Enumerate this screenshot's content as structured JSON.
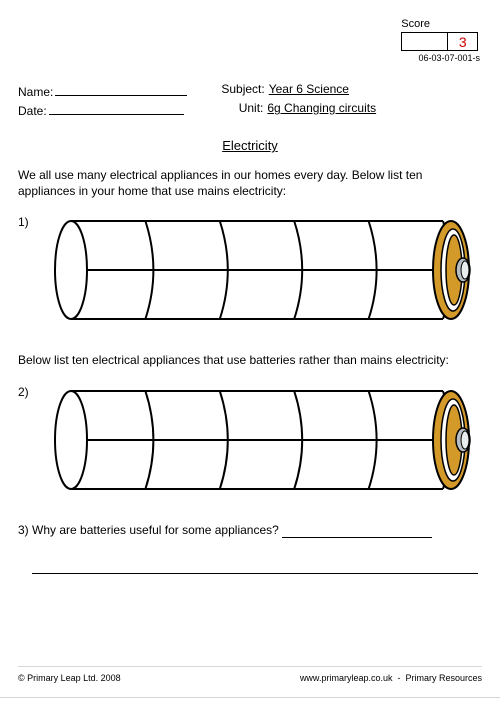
{
  "score": {
    "label": "Score",
    "value": "3",
    "doc_id": "06-03-07-001-s"
  },
  "meta": {
    "name_label": "Name:",
    "date_label": "Date:",
    "subject_label": "Subject:",
    "subject_value": "Year 6 Science",
    "unit_label": "Unit:",
    "unit_value": "6g Changing circuits"
  },
  "title": "Electricity",
  "q1_text": "We all use many electrical appliances in our homes every day. Below list ten appliances in your home that use mains electricity:",
  "q1_num": "1)",
  "q2_text": "Below list ten electrical appliances that use batteries rather than mains electricity:",
  "q2_num": "2)",
  "q3_num": "3)",
  "q3_text": "Why are batteries useful for some appliances?",
  "battery": {
    "segments": 5,
    "body_fill": "#ffffff",
    "body_stroke": "#000000",
    "cap_outer": "#d39a2a",
    "cap_inner_ring": "#ffffff",
    "cap_core": "#b7bec3",
    "stroke_width": 2
  },
  "footer": {
    "left": "© Primary Leap Ltd. 2008",
    "right_url": "www.primaryleap.co.uk",
    "right_text": "Primary Resources"
  }
}
